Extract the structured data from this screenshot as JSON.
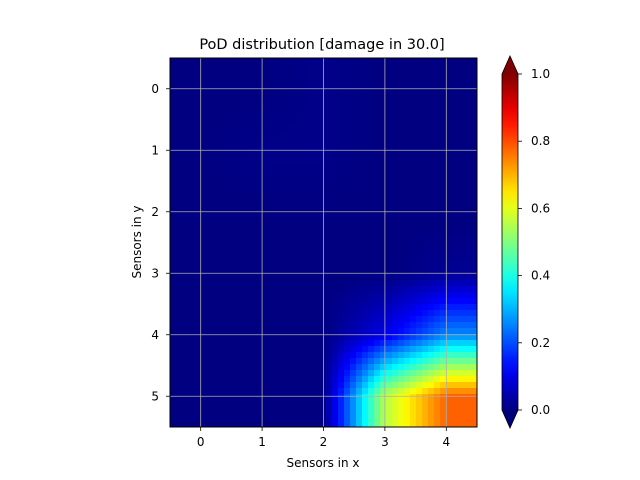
{
  "chart_data": {
    "type": "heatmap",
    "title": "PoD distribution [damage in 30.0]",
    "xlabel": "Sensors in x",
    "ylabel": "Sensors in y",
    "x": [
      0,
      1,
      2,
      3,
      4
    ],
    "y": [
      0,
      1,
      2,
      3,
      4,
      5
    ],
    "x_tick_labels": [
      "0",
      "1",
      "2",
      "3",
      "4"
    ],
    "y_tick_labels": [
      "0",
      "1",
      "2",
      "3",
      "4",
      "5"
    ],
    "xlim": [
      -0.5,
      4.5
    ],
    "ylim": [
      5.5,
      -0.5
    ],
    "y_axis_inverted": true,
    "grid": true,
    "interpolation": "smooth",
    "values": [
      [
        0.0,
        0.0,
        0.01,
        0.0,
        0.0
      ],
      [
        0.0,
        0.01,
        0.01,
        0.0,
        0.0
      ],
      [
        0.0,
        0.0,
        0.0,
        0.0,
        0.0
      ],
      [
        0.0,
        0.0,
        0.0,
        0.0,
        0.02
      ],
      [
        0.0,
        0.0,
        0.0,
        0.1,
        0.26
      ],
      [
        0.0,
        0.0,
        0.0,
        0.55,
        0.78
      ]
    ],
    "colorbar": {
      "colormap": "jet",
      "vmin": 0.0,
      "vmax": 1.0,
      "extend": "both",
      "ticks": [
        0.0,
        0.2,
        0.4,
        0.6,
        0.8,
        1.0
      ],
      "tick_labels": [
        "0.0",
        "0.2",
        "0.4",
        "0.6",
        "0.8",
        "1.0"
      ],
      "under_color": "#00007f",
      "over_color": "#7f0000"
    }
  }
}
